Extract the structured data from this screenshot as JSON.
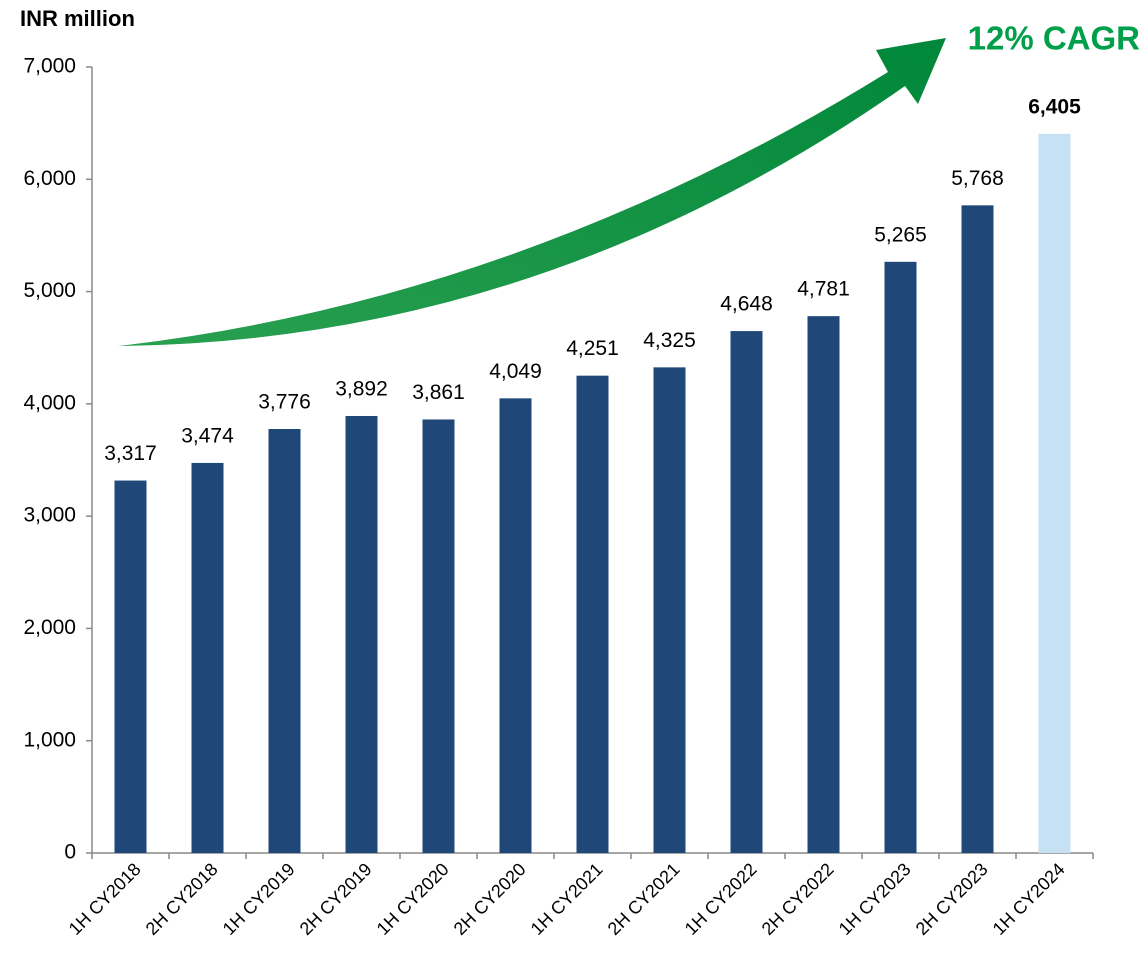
{
  "chart_data": {
    "type": "bar",
    "y_label": "INR million",
    "annotation": "12% CAGR",
    "categories": [
      "1H CY2018",
      "2H CY2018",
      "1H CY2019",
      "2H CY2019",
      "1H CY2020",
      "2H CY2020",
      "1H CY2021",
      "2H CY2021",
      "1H CY2022",
      "2H CY2022",
      "1H CY2023",
      "2H CY2023",
      "1H CY2024"
    ],
    "values": [
      3317,
      3474,
      3776,
      3892,
      3861,
      4049,
      4251,
      4325,
      4648,
      4781,
      5265,
      5768,
      6405
    ],
    "value_labels": [
      "3,317",
      "3,474",
      "3,776",
      "3,892",
      "3,861",
      "4,049",
      "4,251",
      "4,325",
      "4,648",
      "4,781",
      "5,265",
      "5,768",
      "6,405"
    ],
    "colors": [
      "#1f4778",
      "#1f4778",
      "#1f4778",
      "#1f4778",
      "#1f4778",
      "#1f4778",
      "#1f4778",
      "#1f4778",
      "#1f4778",
      "#1f4778",
      "#1f4778",
      "#1f4778",
      "#c5e1f3"
    ],
    "label_weights": [
      "normal",
      "normal",
      "normal",
      "normal",
      "normal",
      "normal",
      "normal",
      "normal",
      "normal",
      "normal",
      "normal",
      "normal",
      "bold"
    ],
    "ylim": [
      0,
      7000
    ],
    "yticks": [
      0,
      {
        "value": 1000,
        "label": "1,000"
      },
      {
        "value": 2000,
        "label": "2,000"
      },
      {
        "value": 3000,
        "label": "3,000"
      },
      {
        "value": 4000,
        "label": "4,000"
      },
      {
        "value": 5000,
        "label": "5,000"
      },
      {
        "value": 6000,
        "label": "6,000"
      },
      {
        "value": 7000,
        "label": "7,000"
      }
    ],
    "grid": false
  }
}
